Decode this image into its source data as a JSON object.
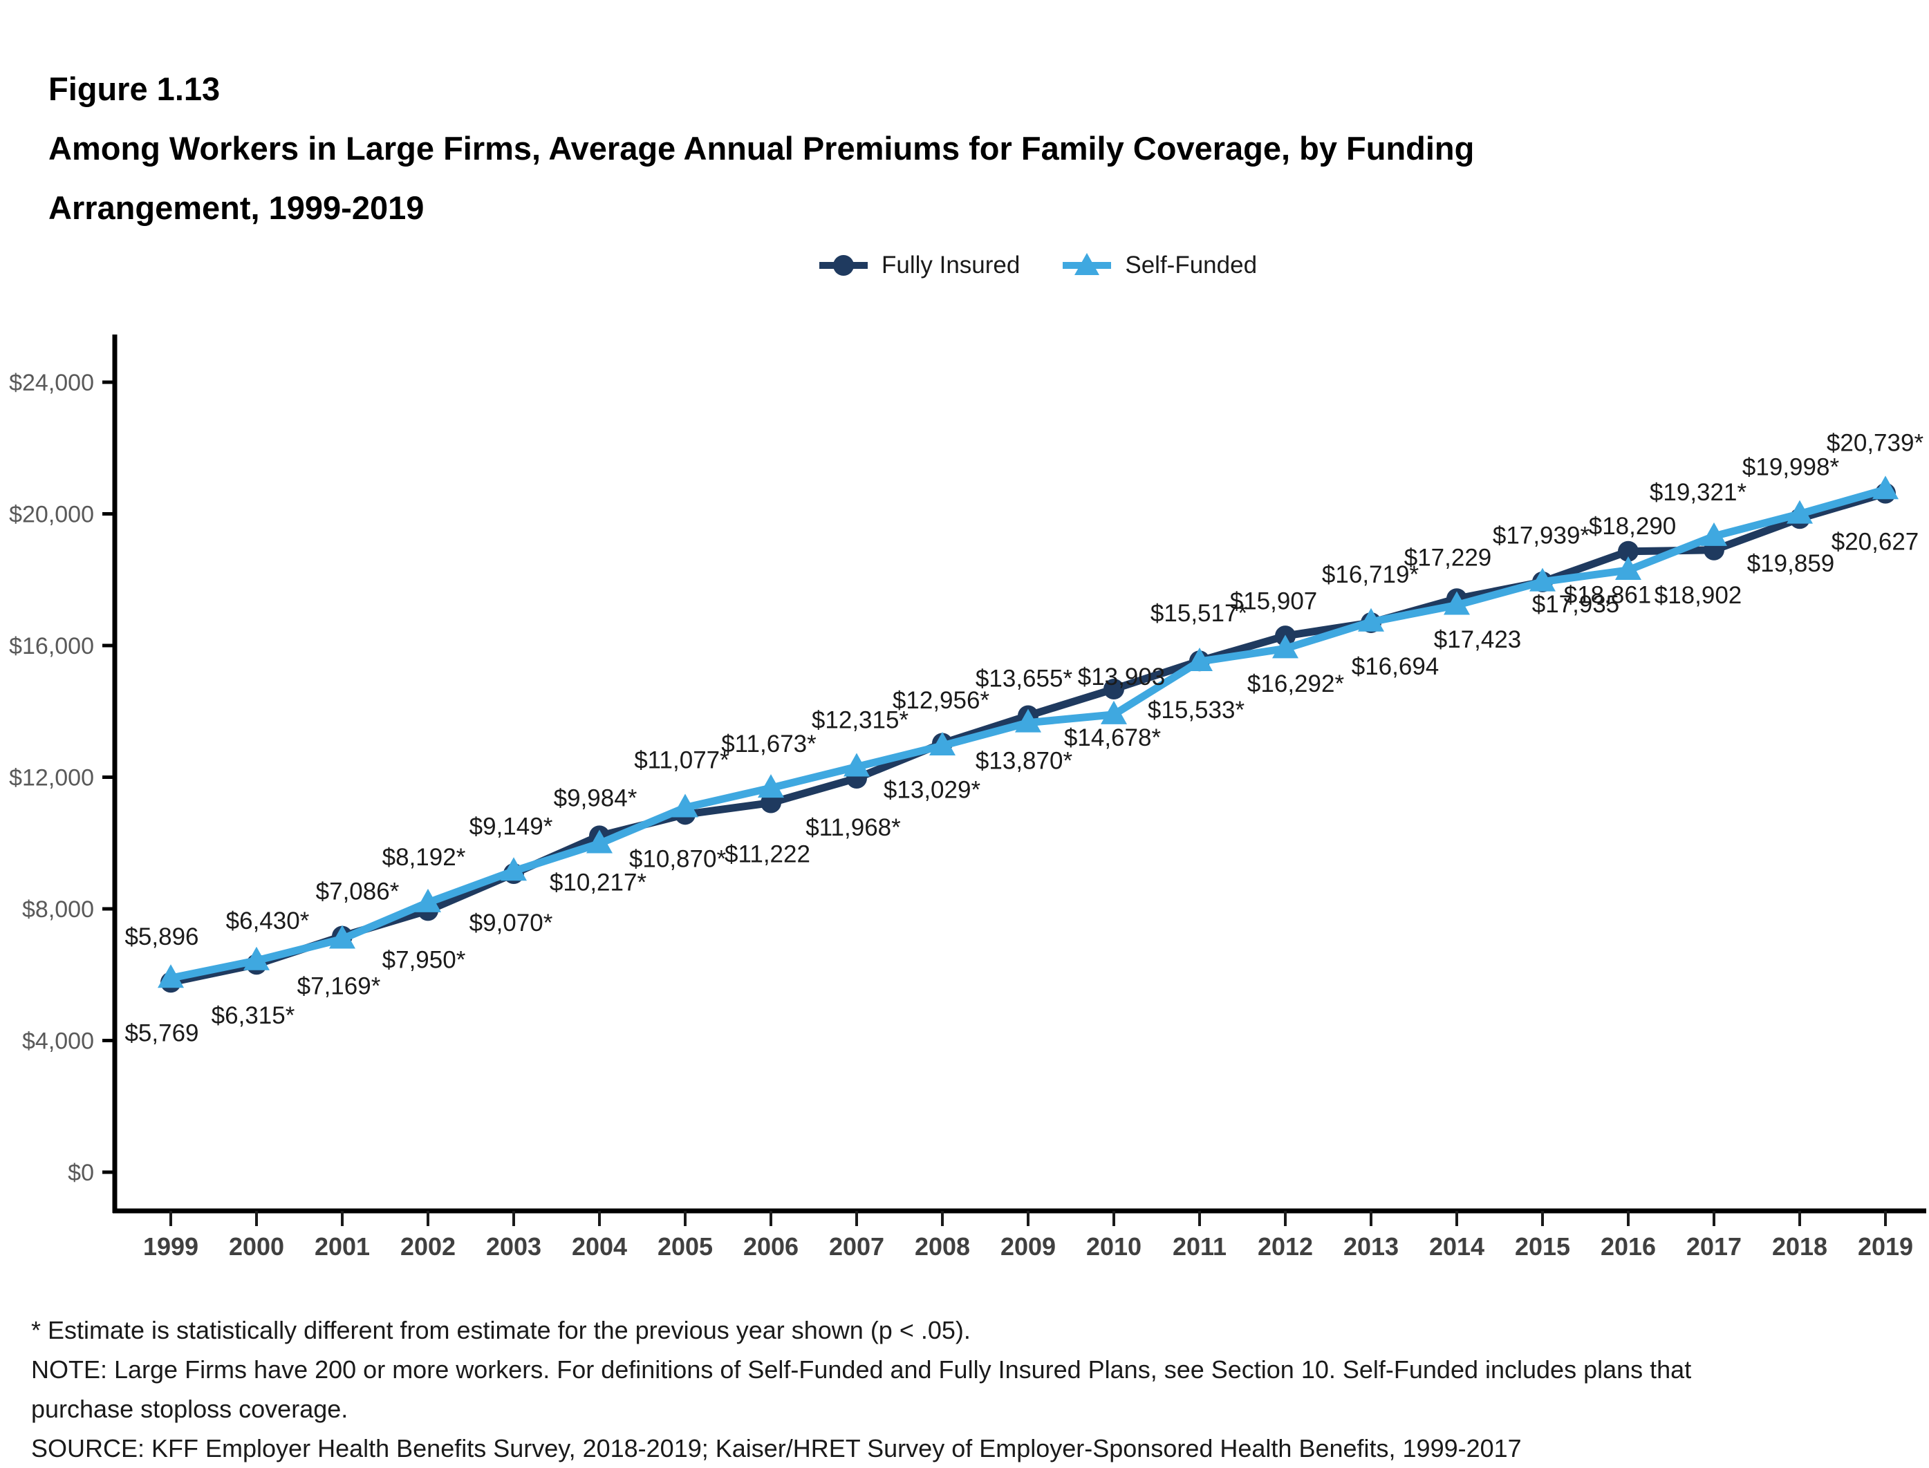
{
  "figure": {
    "label": "Figure 1.13",
    "title_line1": "Among Workers in Large Firms, Average Annual Premiums for Family Coverage, by Funding",
    "title_line2": "Arrangement, 1999-2019"
  },
  "colors": {
    "fully_insured": "#1f3a5f",
    "self_funded": "#3fa8e0",
    "axis": "#000000",
    "tick_label": "#595959",
    "year_label": "#404040",
    "data_label": "#1a1a1a"
  },
  "legend": [
    {
      "label": "Fully Insured",
      "marker": "circle-icon",
      "color": "#1f3a5f"
    },
    {
      "label": "Self-Funded",
      "marker": "triangle-icon",
      "color": "#3fa8e0"
    }
  ],
  "chart_data": {
    "type": "line",
    "title": "Among Workers in Large Firms, Average Annual Premiums for Family Coverage, by Funding Arrangement, 1999-2019",
    "categories": [
      "1999",
      "2000",
      "2001",
      "2002",
      "2003",
      "2004",
      "2005",
      "2006",
      "2007",
      "2008",
      "2009",
      "2010",
      "2011",
      "2012",
      "2013",
      "2014",
      "2015",
      "2016",
      "2017",
      "2018",
      "2019"
    ],
    "xlabel": "",
    "ylabel": "",
    "ylim": [
      0,
      24000
    ],
    "yticks": [
      0,
      4000,
      8000,
      12000,
      16000,
      20000,
      24000
    ],
    "ytick_labels": [
      "$0",
      "$4,000",
      "$8,000",
      "$12,000",
      "$16,000",
      "$20,000",
      "$24,000"
    ],
    "grid": false,
    "legend_position": "top",
    "series": [
      {
        "name": "Fully Insured",
        "marker": "circle",
        "color": "#1f3a5f",
        "label_side": "below",
        "values": [
          5769,
          6315,
          7169,
          7950,
          9070,
          10217,
          10870,
          11222,
          11968,
          13029,
          13870,
          14678,
          15533,
          16292,
          16694,
          17423,
          17935,
          18861,
          18902,
          19859,
          20627
        ],
        "labels": [
          "$5,769",
          "$6,315*",
          "$7,169*",
          "$7,950*",
          "$9,070*",
          "$10,217*",
          "$10,870*",
          "$11,222",
          "$11,968*",
          "$13,029*",
          "$13,870*",
          "$14,678*",
          "$15,533*",
          "$16,292*",
          "$16,694",
          "$17,423",
          "$17,935",
          "$18,861",
          "$18,902",
          "$19,859",
          "$20,627"
        ],
        "label_offsets": [
          [
            -13,
            73
          ],
          [
            -5,
            74
          ],
          [
            -5,
            72
          ],
          [
            -6,
            71
          ],
          [
            -4,
            71
          ],
          [
            -2,
            67
          ],
          [
            -11,
            64
          ],
          [
            -5,
            74
          ],
          [
            -5,
            71
          ],
          [
            -15,
            67
          ],
          [
            -6,
            65
          ],
          [
            -2,
            70
          ],
          [
            -5,
            71
          ],
          [
            15,
            69
          ],
          [
            35,
            63
          ],
          [
            30,
            59
          ],
          [
            48,
            32
          ],
          [
            -30,
            63
          ],
          [
            -23,
            65
          ],
          [
            -13,
            65
          ],
          [
            -15,
            70
          ]
        ]
      },
      {
        "name": "Self-Funded",
        "marker": "triangle",
        "color": "#3fa8e0",
        "label_side": "above",
        "values": [
          5896,
          6430,
          7086,
          8192,
          9149,
          9984,
          11077,
          11673,
          12315,
          12956,
          13655,
          13903,
          15517,
          15907,
          16719,
          17229,
          17939,
          18290,
          19321,
          19998,
          20739
        ],
        "labels": [
          "$5,896",
          "$6,430*",
          "$7,086*",
          "$8,192*",
          "$9,149*",
          "$9,984*",
          "$11,077*",
          "$11,673*",
          "$12,315*",
          "$12,956*",
          "$13,655*",
          "$13,903",
          "$15,517*",
          "$15,907",
          "$16,719*",
          "$17,229",
          "$17,939*",
          "$18,290",
          "$19,321*",
          "$19,998*",
          "$20,739*"
        ],
        "label_offsets": [
          [
            -13,
            -60
          ],
          [
            16,
            -58
          ],
          [
            22,
            -69
          ],
          [
            -6,
            -66
          ],
          [
            -4,
            -65
          ],
          [
            -6,
            -66
          ],
          [
            -5,
            -69
          ],
          [
            -3,
            -64
          ],
          [
            5,
            -68
          ],
          [
            -2,
            -66
          ],
          [
            -6,
            -64
          ],
          [
            11,
            -55
          ],
          [
            -1,
            -70
          ],
          [
            -17,
            -69
          ],
          [
            -1,
            -69
          ],
          [
            -13,
            -69
          ],
          [
            -2,
            -67
          ],
          [
            6,
            -64
          ],
          [
            -23,
            -64
          ],
          [
            -13,
            -68
          ],
          [
            -15,
            -68
          ]
        ]
      }
    ]
  },
  "footnotes": {
    "line1": "* Estimate is statistically different from estimate for the previous year shown (p < .05).",
    "line2": "NOTE: Large Firms have 200 or more workers.  For definitions of Self-Funded and Fully Insured Plans, see Section 10. Self-Funded includes plans that",
    "line3": "purchase stoploss coverage.",
    "line4": "SOURCE: KFF Employer Health Benefits Survey, 2018-2019; Kaiser/HRET Survey of Employer-Sponsored Health Benefits, 1999-2017"
  }
}
